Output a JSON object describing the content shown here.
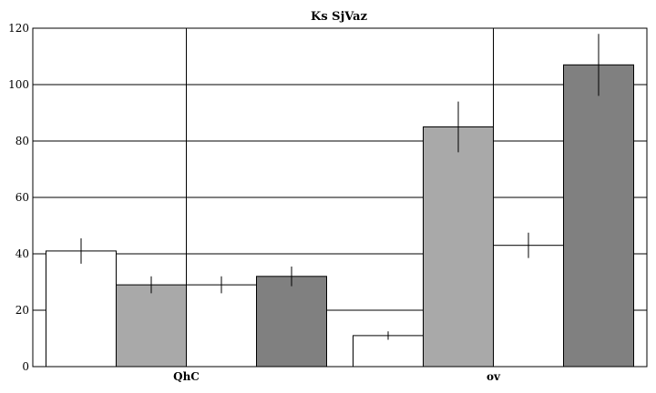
{
  "chart_data": {
    "type": "bar",
    "title": "Ks SjVaz",
    "xlabel": "",
    "ylabel": "",
    "categories": [
      "QhC",
      "ov"
    ],
    "ylim": [
      0,
      120
    ],
    "yticks": [
      0,
      20,
      40,
      60,
      80,
      100,
      120
    ],
    "grid": true,
    "legend": "none",
    "series": [
      {
        "color": "#ffffff",
        "values": [
          41,
          11
        ],
        "errors": [
          4.5,
          1.5
        ]
      },
      {
        "color": "#a9a9a9",
        "values": [
          29,
          85
        ],
        "errors": [
          3,
          9
        ]
      },
      {
        "color": "#ffffff",
        "values": [
          29,
          43
        ],
        "errors": [
          3,
          4.5
        ]
      },
      {
        "color": "#808080",
        "values": [
          32,
          107
        ],
        "errors": [
          3.5,
          11
        ]
      }
    ]
  }
}
